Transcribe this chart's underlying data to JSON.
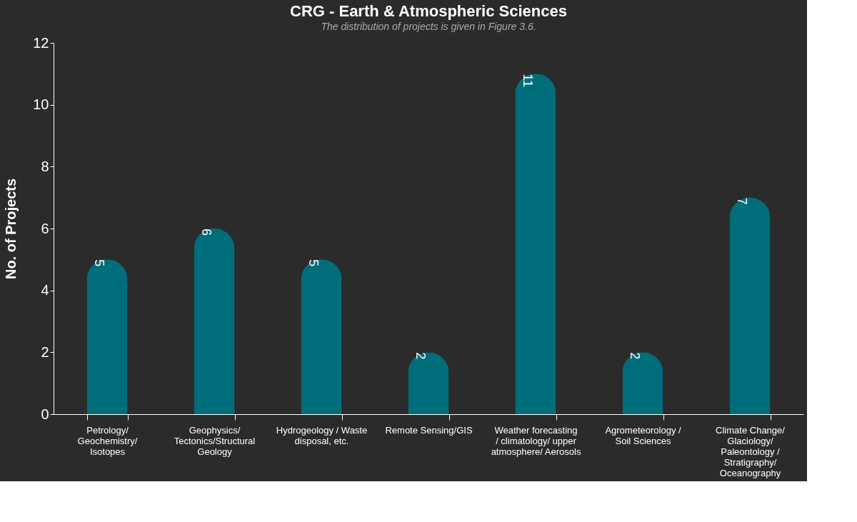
{
  "chart_data": {
    "type": "bar",
    "title": "CRG - Earth & Atmospheric Sciences",
    "ylabel": "No. of Projects",
    "categories": [
      "Petrology/ Geochemistry/ Isotopes",
      "Geophysics/ Tectonics/Structural Geology",
      "Hydrogeology / Waste disposal, etc.",
      "Remote Sensing/GIS",
      "Weather forecasting / climatology/ upper atmosphere/ Aerosols",
      "Agrometeorology / Soil Sciences",
      "Climate Change/ Glaciology/ Paleontology / Stratigraphy/ Oceanography"
    ],
    "values": [
      5,
      6,
      5,
      2,
      11,
      2,
      7
    ],
    "color": "#006e7a",
    "ylim": [
      0,
      12
    ],
    "yticks": [
      0,
      2,
      4,
      6,
      8,
      10,
      12
    ],
    "grid": false,
    "data_labels": true,
    "annotations": [
      "The distribution of projects is given in Figure 3.6."
    ]
  }
}
